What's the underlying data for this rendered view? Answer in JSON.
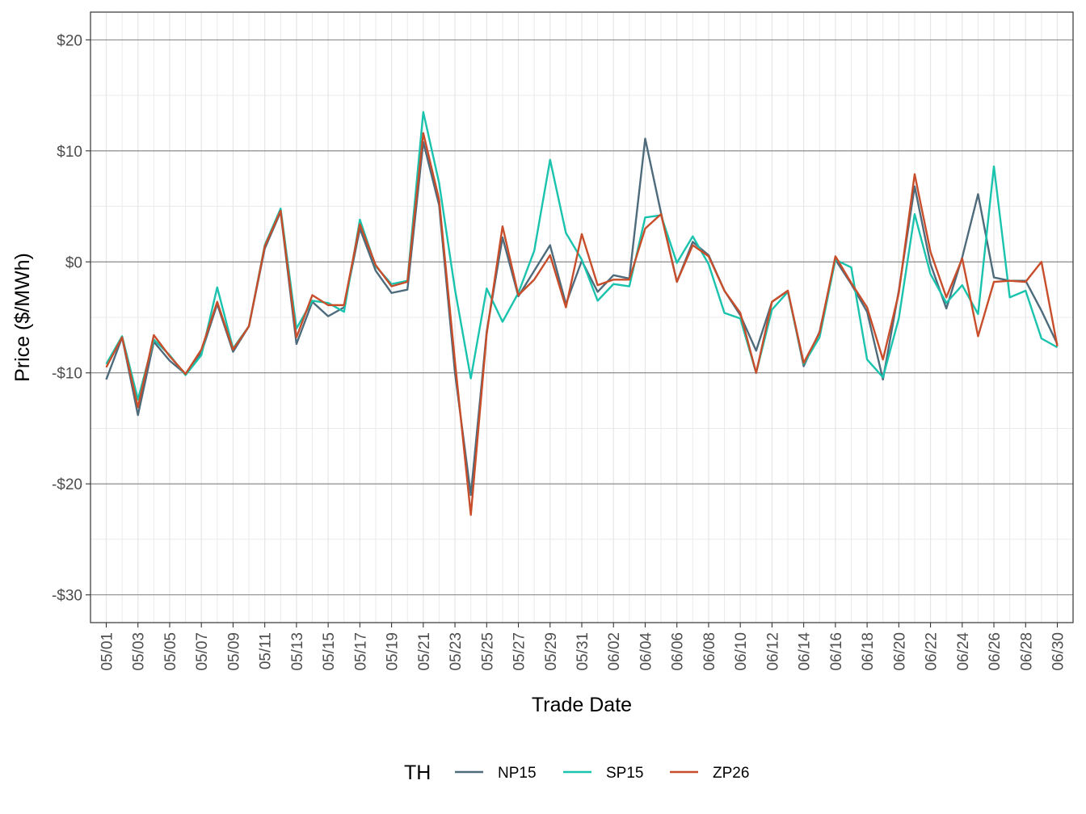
{
  "chart_data": {
    "type": "line",
    "xlabel": "Trade Date",
    "ylabel": "Price ($/MWh)",
    "ylim": [
      -32.5,
      22.5
    ],
    "y_ticks": [
      20,
      10,
      0,
      -10,
      -20,
      -30
    ],
    "y_tick_labels": [
      "$20",
      "$10",
      "$0",
      "-$10",
      "-$20",
      "-$30"
    ],
    "grid": true,
    "legend": {
      "title": "TH",
      "placement": "bottom"
    },
    "x": [
      "05/01",
      "05/02",
      "05/03",
      "05/04",
      "05/05",
      "05/06",
      "05/07",
      "05/08",
      "05/09",
      "05/10",
      "05/11",
      "05/12",
      "05/13",
      "05/14",
      "05/15",
      "05/16",
      "05/17",
      "05/18",
      "05/19",
      "05/20",
      "05/21",
      "05/22",
      "05/23",
      "05/24",
      "05/25",
      "05/26",
      "05/27",
      "05/28",
      "05/29",
      "05/30",
      "05/31",
      "06/01",
      "06/02",
      "06/03",
      "06/04",
      "06/05",
      "06/06",
      "06/07",
      "06/08",
      "06/09",
      "06/10",
      "06/11",
      "06/12",
      "06/13",
      "06/14",
      "06/15",
      "06/16",
      "06/17",
      "06/18",
      "06/19",
      "06/20",
      "06/21",
      "06/22",
      "06/23",
      "06/24",
      "06/25",
      "06/26",
      "06/27",
      "06/28",
      "06/29",
      "06/30"
    ],
    "x_tick_labels": [
      "05/01",
      "05/03",
      "05/05",
      "05/07",
      "05/09",
      "05/11",
      "05/13",
      "05/15",
      "05/17",
      "05/19",
      "05/21",
      "05/23",
      "05/25",
      "05/27",
      "05/29",
      "05/31",
      "06/02",
      "06/04",
      "06/06",
      "06/08",
      "06/10",
      "06/12",
      "06/14",
      "06/16",
      "06/18",
      "06/20",
      "06/22",
      "06/24",
      "06/26",
      "06/28",
      "06/30"
    ],
    "series": [
      {
        "name": "NP15",
        "color": "#4e6b7c",
        "values": [
          -10.6,
          -6.8,
          -13.8,
          -7.2,
          -8.9,
          -10.1,
          -8.2,
          -3.8,
          -8.1,
          -5.8,
          1.2,
          4.5,
          -7.4,
          -3.6,
          -4.9,
          -4.1,
          3.0,
          -0.8,
          -2.8,
          -2.5,
          10.8,
          5.1,
          -10.0,
          -21.0,
          -6.3,
          2.2,
          -3.1,
          -0.8,
          1.5,
          -3.8,
          0.1,
          -2.7,
          -1.2,
          -1.5,
          11.1,
          4.4,
          -1.8,
          1.8,
          0.6,
          -2.6,
          -4.8,
          -8.0,
          -3.6,
          -2.6,
          -9.4,
          -6.3,
          0.2,
          -2.0,
          -4.5,
          -10.6,
          -2.6,
          6.8,
          -0.2,
          -4.2,
          0.4,
          6.1,
          -1.4,
          -1.7,
          -1.7,
          -4.4,
          -7.4
        ]
      },
      {
        "name": "SP15",
        "color": "#1ac3ad",
        "values": [
          -9.2,
          -6.7,
          -12.4,
          -7.0,
          -8.4,
          -10.2,
          -8.4,
          -2.3,
          -7.8,
          -5.8,
          1.5,
          4.8,
          -6.0,
          -3.5,
          -3.7,
          -4.5,
          3.8,
          -0.4,
          -2.0,
          -1.7,
          13.5,
          7.1,
          -2.5,
          -10.5,
          -2.4,
          -5.4,
          -2.8,
          1.0,
          9.2,
          2.6,
          0.2,
          -3.5,
          -2.0,
          -2.2,
          4.0,
          4.2,
          -0.1,
          2.3,
          -0.2,
          -4.6,
          -5.1,
          -10.0,
          -4.3,
          -2.7,
          -9.2,
          -6.8,
          0.2,
          -0.5,
          -8.8,
          -10.4,
          -5.1,
          4.3,
          -1.1,
          -3.7,
          -2.1,
          -4.7,
          8.6,
          -3.2,
          -2.6,
          -6.9,
          -7.7
        ]
      },
      {
        "name": "ZP26",
        "color": "#c84d2a",
        "values": [
          -9.5,
          -6.8,
          -13.1,
          -6.6,
          -8.5,
          -10.1,
          -7.9,
          -3.6,
          -7.9,
          -5.8,
          1.4,
          4.6,
          -6.8,
          -3.0,
          -3.9,
          -3.9,
          3.4,
          -0.3,
          -2.2,
          -1.8,
          11.6,
          5.6,
          -9.0,
          -22.8,
          -6.5,
          3.2,
          -3.0,
          -1.6,
          0.6,
          -4.1,
          2.5,
          -2.1,
          -1.6,
          -1.6,
          3.0,
          4.3,
          -1.8,
          1.5,
          0.5,
          -2.6,
          -4.6,
          -10.0,
          -3.6,
          -2.6,
          -9.1,
          -6.4,
          0.5,
          -1.9,
          -4.1,
          -8.8,
          -2.8,
          7.9,
          0.9,
          -3.2,
          0.3,
          -6.7,
          -1.8,
          -1.7,
          -1.8,
          0.0,
          -7.6
        ]
      }
    ]
  }
}
